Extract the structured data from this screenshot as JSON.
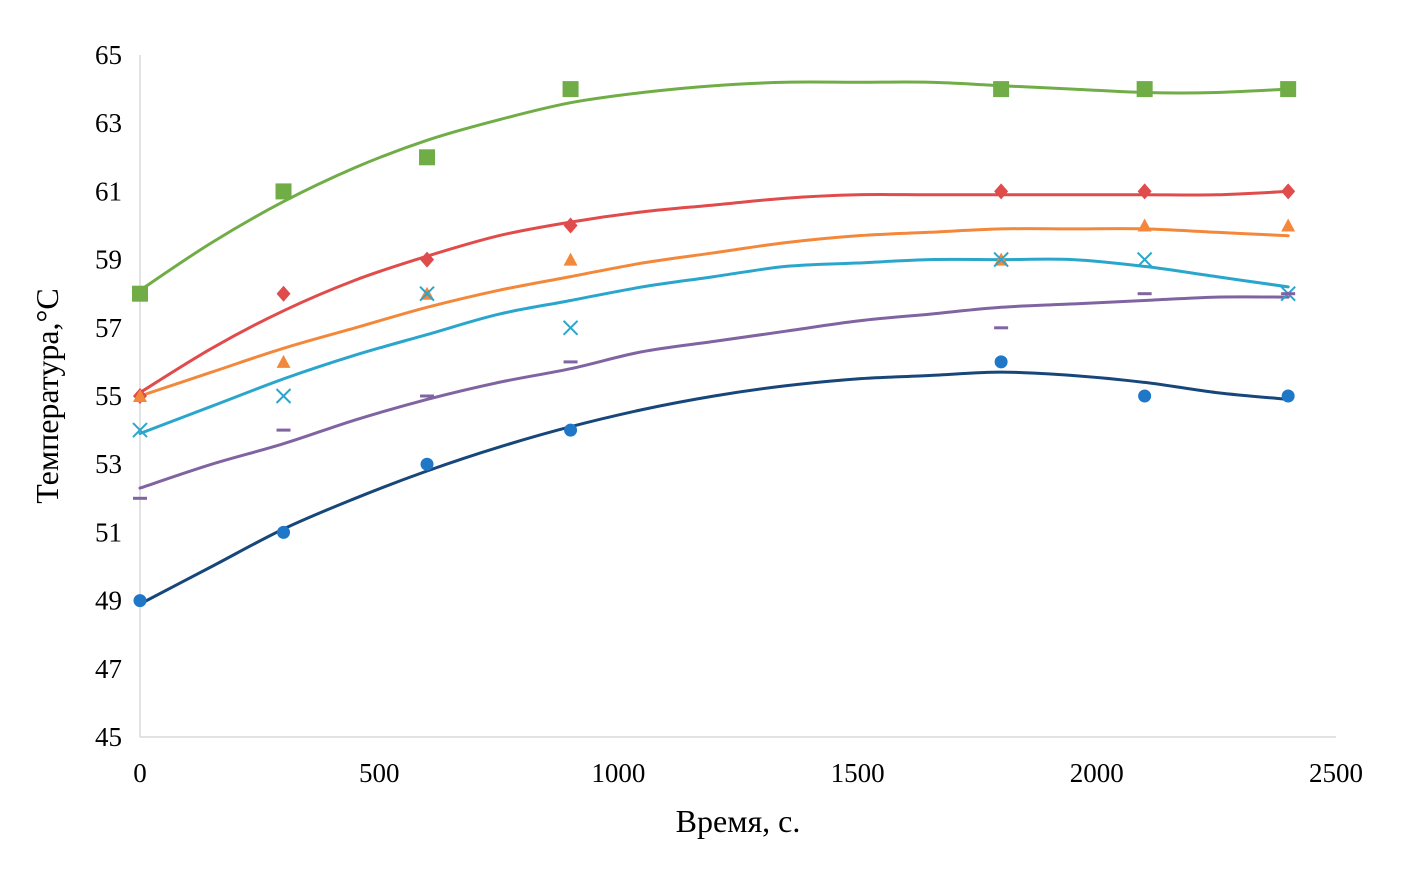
{
  "chart_data": {
    "type": "scatter",
    "title": "",
    "xlabel": "Время, с.",
    "ylabel": "Температура,°С",
    "xlim": [
      0,
      2500
    ],
    "ylim": [
      45,
      65
    ],
    "xticks": [
      "0",
      "500",
      "1000",
      "1500",
      "2000",
      "2500"
    ],
    "yticks": [
      "45",
      "47",
      "49",
      "51",
      "53",
      "55",
      "57",
      "59",
      "61",
      "63",
      "65"
    ],
    "grid": false,
    "legend": "none",
    "x": [
      0,
      300,
      600,
      900,
      1800,
      2100,
      2400
    ],
    "series": [
      {
        "marker": "square",
        "color": "#70ad47",
        "values": [
          58,
          61,
          62,
          64,
          64,
          64,
          64
        ],
        "trend": [
          [
            0,
            58.1
          ],
          [
            150,
            59.5
          ],
          [
            300,
            60.7
          ],
          [
            450,
            61.7
          ],
          [
            600,
            62.5
          ],
          [
            750,
            63.1
          ],
          [
            900,
            63.6
          ],
          [
            1050,
            63.9
          ],
          [
            1200,
            64.1
          ],
          [
            1350,
            64.2
          ],
          [
            1500,
            64.2
          ],
          [
            1650,
            64.2
          ],
          [
            1800,
            64.1
          ],
          [
            1950,
            64.0
          ],
          [
            2100,
            63.9
          ],
          [
            2250,
            63.9
          ],
          [
            2400,
            64.0
          ]
        ]
      },
      {
        "marker": "diamond",
        "color": "#e04b4b",
        "values": [
          55,
          58,
          59,
          60,
          61,
          61,
          61
        ],
        "trend": [
          [
            0,
            55.1
          ],
          [
            150,
            56.4
          ],
          [
            300,
            57.5
          ],
          [
            450,
            58.4
          ],
          [
            600,
            59.1
          ],
          [
            750,
            59.7
          ],
          [
            900,
            60.1
          ],
          [
            1050,
            60.4
          ],
          [
            1200,
            60.6
          ],
          [
            1350,
            60.8
          ],
          [
            1500,
            60.9
          ],
          [
            1650,
            60.9
          ],
          [
            1800,
            60.9
          ],
          [
            1950,
            60.9
          ],
          [
            2100,
            60.9
          ],
          [
            2250,
            60.9
          ],
          [
            2400,
            61.0
          ]
        ]
      },
      {
        "marker": "triangle",
        "color": "#f4883a",
        "values": [
          55,
          56,
          58,
          59,
          59,
          60,
          60
        ],
        "trend": [
          [
            0,
            55.0
          ],
          [
            150,
            55.7
          ],
          [
            300,
            56.4
          ],
          [
            450,
            57.0
          ],
          [
            600,
            57.6
          ],
          [
            750,
            58.1
          ],
          [
            900,
            58.5
          ],
          [
            1050,
            58.9
          ],
          [
            1200,
            59.2
          ],
          [
            1350,
            59.5
          ],
          [
            1500,
            59.7
          ],
          [
            1650,
            59.8
          ],
          [
            1800,
            59.9
          ],
          [
            1950,
            59.9
          ],
          [
            2100,
            59.9
          ],
          [
            2250,
            59.8
          ],
          [
            2400,
            59.7
          ]
        ]
      },
      {
        "marker": "x",
        "color": "#2aa6cc",
        "values": [
          54,
          55,
          58,
          57,
          59,
          59,
          58
        ],
        "trend": [
          [
            0,
            53.9
          ],
          [
            150,
            54.7
          ],
          [
            300,
            55.5
          ],
          [
            450,
            56.2
          ],
          [
            600,
            56.8
          ],
          [
            750,
            57.4
          ],
          [
            900,
            57.8
          ],
          [
            1050,
            58.2
          ],
          [
            1200,
            58.5
          ],
          [
            1350,
            58.8
          ],
          [
            1500,
            58.9
          ],
          [
            1650,
            59.0
          ],
          [
            1800,
            59.0
          ],
          [
            1950,
            59.0
          ],
          [
            2100,
            58.8
          ],
          [
            2250,
            58.5
          ],
          [
            2400,
            58.2
          ]
        ]
      },
      {
        "marker": "dash",
        "color": "#8064a2",
        "values": [
          52,
          54,
          55,
          56,
          57,
          58,
          58
        ],
        "trend": [
          [
            0,
            52.3
          ],
          [
            150,
            53.0
          ],
          [
            300,
            53.6
          ],
          [
            450,
            54.3
          ],
          [
            600,
            54.9
          ],
          [
            750,
            55.4
          ],
          [
            900,
            55.8
          ],
          [
            1050,
            56.3
          ],
          [
            1200,
            56.6
          ],
          [
            1350,
            56.9
          ],
          [
            1500,
            57.2
          ],
          [
            1650,
            57.4
          ],
          [
            1800,
            57.6
          ],
          [
            1950,
            57.7
          ],
          [
            2100,
            57.8
          ],
          [
            2250,
            57.9
          ],
          [
            2400,
            57.9
          ]
        ]
      },
      {
        "marker": "circle",
        "color": "#1f77c7",
        "line_color": "#17467a",
        "values": [
          49,
          51,
          53,
          54,
          56,
          55,
          55
        ],
        "trend": [
          [
            0,
            48.9
          ],
          [
            150,
            50.0
          ],
          [
            300,
            51.1
          ],
          [
            450,
            52.0
          ],
          [
            600,
            52.8
          ],
          [
            750,
            53.5
          ],
          [
            900,
            54.1
          ],
          [
            1050,
            54.6
          ],
          [
            1200,
            55.0
          ],
          [
            1350,
            55.3
          ],
          [
            1500,
            55.5
          ],
          [
            1650,
            55.6
          ],
          [
            1800,
            55.7
          ],
          [
            1950,
            55.6
          ],
          [
            2100,
            55.4
          ],
          [
            2250,
            55.1
          ],
          [
            2400,
            54.9
          ]
        ]
      }
    ]
  }
}
